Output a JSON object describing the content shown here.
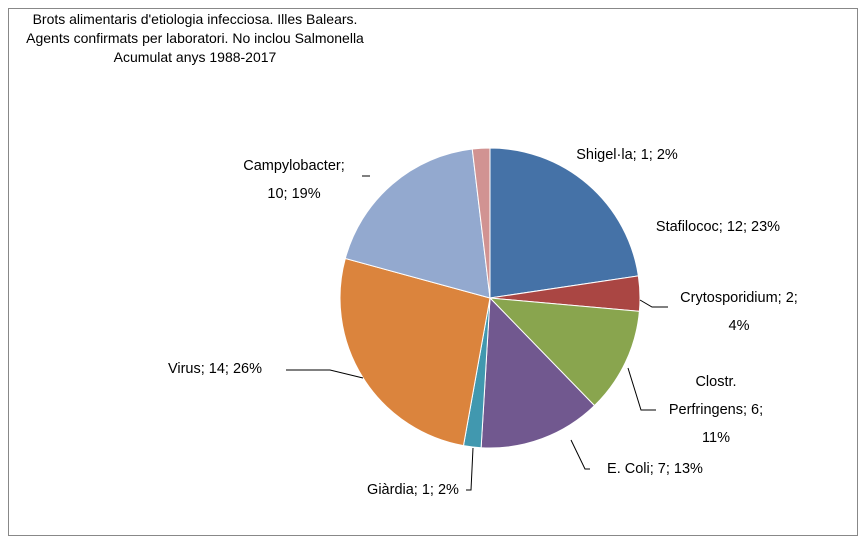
{
  "chart_data": {
    "type": "pie",
    "title": [
      "Brots  alimentaris d'etiologia infecciosa.  Illes Balears.",
      "Agents confirmats per laboratori. No inclou Salmonella",
      "Acumulat anys 1988-2017"
    ],
    "categories": [
      "Stafilococ",
      "Crytosporidium",
      "Clostr. Perfringens",
      "E. Coli",
      "Giàrdia",
      "Virus",
      "Campylobacter",
      "Shigel·la"
    ],
    "values": [
      12,
      2,
      6,
      7,
      1,
      14,
      10,
      1
    ],
    "value_labels": [
      "Stafilococ; 12; 23%",
      "Crytosporidium; 2; 4%",
      "Clostr. Perfringens; 6; 11%",
      "E. Coli; 7; 13%",
      "Giàrdia; 1; 2%",
      "Virus; 14; 26%",
      "Campylobacter; 10; 19%",
      "Shigel·la; 1; 2%"
    ],
    "colors": [
      "#4572a7",
      "#aa4643",
      "#89a54e",
      "#71588f",
      "#4198af",
      "#db843d",
      "#93a9cf",
      "#d19392"
    ]
  }
}
